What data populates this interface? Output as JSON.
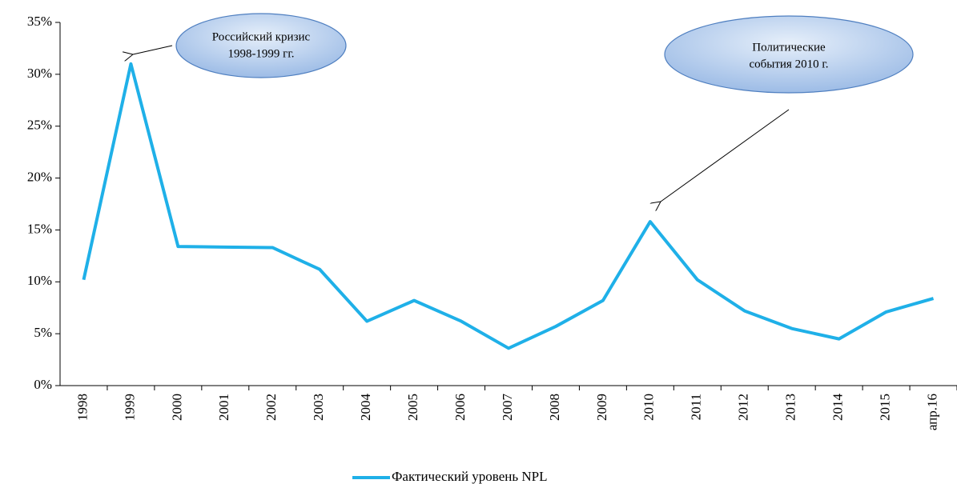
{
  "chart_data": {
    "type": "line",
    "categories": [
      "1998",
      "1999",
      "2000",
      "2001",
      "2002",
      "2003",
      "2004",
      "2005",
      "2006",
      "2007",
      "2008",
      "2009",
      "2010",
      "2011",
      "2012",
      "2013",
      "2014",
      "2015",
      "апр.16"
    ],
    "series": [
      {
        "name": "Фактический уровень NPL",
        "color": "#1fb0e8",
        "values": [
          10.2,
          31.0,
          13.4,
          13.35,
          13.3,
          11.2,
          6.2,
          8.2,
          6.2,
          3.6,
          5.7,
          8.2,
          15.8,
          10.2,
          7.2,
          5.5,
          4.5,
          7.1,
          8.4
        ]
      }
    ],
    "ylim": [
      0,
      35
    ],
    "yticks": [
      {
        "value": 0,
        "label": "0%"
      },
      {
        "value": 5,
        "label": "5%"
      },
      {
        "value": 10,
        "label": "10%"
      },
      {
        "value": 15,
        "label": "15%"
      },
      {
        "value": 20,
        "label": "20%"
      },
      {
        "value": 25,
        "label": "25%"
      },
      {
        "value": 30,
        "label": "30%"
      },
      {
        "value": 35,
        "label": "35%"
      }
    ],
    "grid": false,
    "legend": "bottom",
    "annotations": [
      {
        "lines": [
          "Российский кризис",
          "1998-1999 гг."
        ]
      },
      {
        "lines": [
          "Политические",
          "события 2010 г."
        ]
      }
    ]
  }
}
